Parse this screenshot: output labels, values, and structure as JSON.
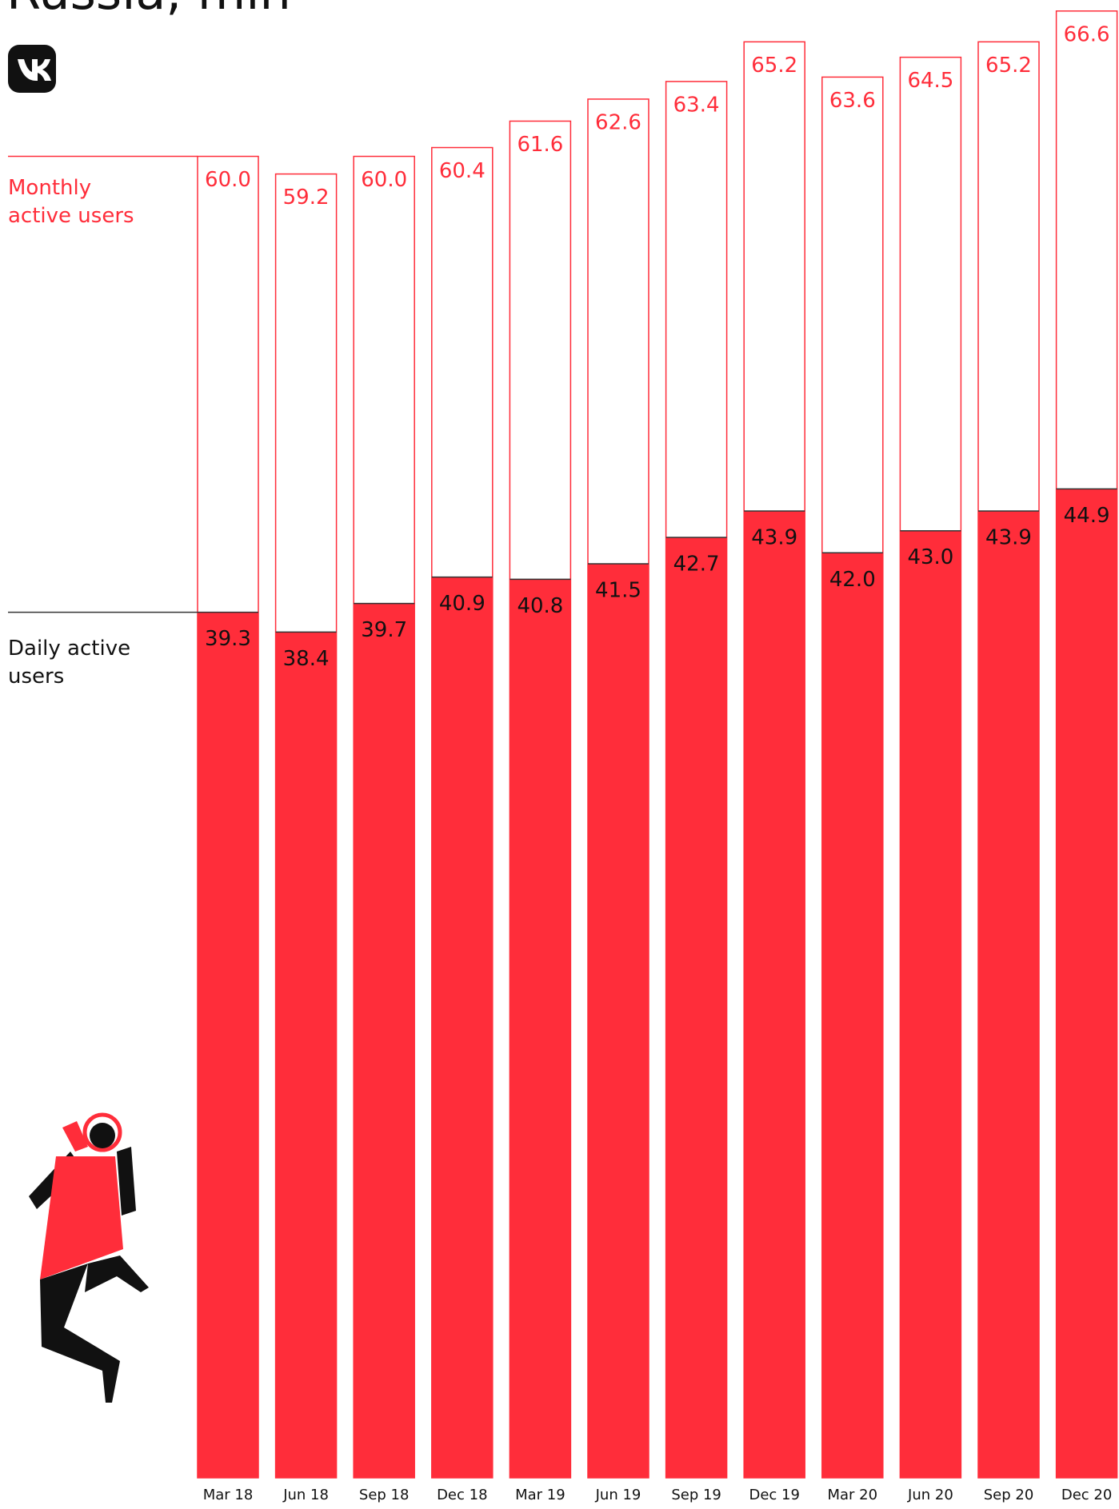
{
  "chart_data": {
    "type": "bar",
    "title": "Russia, mln",
    "categories": [
      "Mar 18",
      "Jun 18",
      "Sep 18",
      "Dec 18",
      "Mar 19",
      "Jun 19",
      "Sep 19",
      "Dec 19",
      "Mar 20",
      "Jun 20",
      "Sep 20",
      "Dec 20"
    ],
    "series": [
      {
        "name": "Monthly active users",
        "color": "#ff2d3a",
        "values": [
          60.0,
          59.2,
          60.0,
          60.4,
          61.6,
          62.6,
          63.4,
          65.2,
          63.6,
          64.5,
          65.2,
          66.6
        ],
        "value_labels": [
          "60.0",
          "59.2",
          "60.0",
          "60.4",
          "61.6",
          "62.6",
          "63.4",
          "65.2",
          "63.6",
          "64.5",
          "65.2",
          "66.6"
        ]
      },
      {
        "name": "Daily active users",
        "color": "#ff2d3a",
        "values": [
          39.3,
          38.4,
          39.7,
          40.9,
          40.8,
          41.5,
          42.7,
          43.9,
          42.0,
          43.0,
          43.9,
          44.9
        ],
        "value_labels": [
          "39.3",
          "38.4",
          "39.7",
          "40.9",
          "40.8",
          "41.5",
          "42.7",
          "43.9",
          "42.0",
          "43.0",
          "43.9",
          "44.9"
        ]
      }
    ],
    "ylim": [
      0,
      67.1
    ]
  }
}
